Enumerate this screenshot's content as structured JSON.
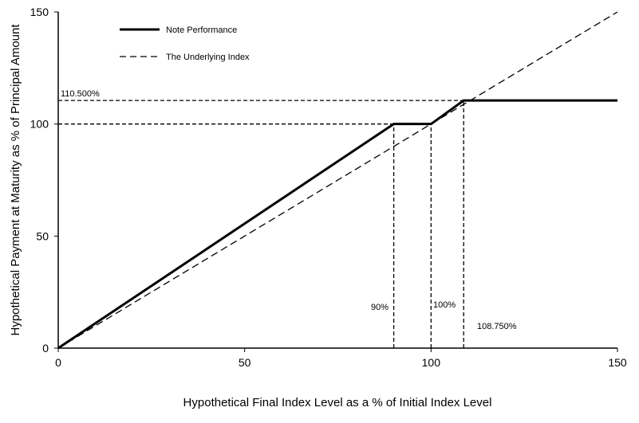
{
  "chart_data": {
    "type": "line",
    "title": "",
    "xlabel": "Hypothetical Final Index Level as a % of Initial Index Level",
    "ylabel": "Hypothetical Payment at Maturity as % of Principal Amount",
    "xlim": [
      0,
      150
    ],
    "ylim": [
      0,
      150
    ],
    "x_ticks": [
      "0",
      "50",
      "100",
      "150"
    ],
    "y_ticks": [
      "0",
      "50",
      "100",
      "150"
    ],
    "grid": false,
    "legend_position": "top-left",
    "series": [
      {
        "name": "Note Performance",
        "style": "solid",
        "x": [
          0,
          90,
          100,
          108.75,
          150
        ],
        "y": [
          0,
          100,
          100,
          110.5,
          110.5
        ]
      },
      {
        "name": "The Underlying Index",
        "style": "dashed",
        "x": [
          0,
          150
        ],
        "y": [
          0,
          150
        ]
      }
    ],
    "annotations": {
      "level_110": {
        "text": "110.500%",
        "x": 0,
        "y": 110.5
      },
      "x90": {
        "text": "90%",
        "x": 90,
        "y": 0
      },
      "x100": {
        "text": "100%",
        "x": 100,
        "y": 0
      },
      "x108": {
        "text": "108.750%",
        "x": 108.75,
        "y": 0
      }
    },
    "reference_lines": {
      "horizontal": [
        {
          "y": 110.5,
          "x_from": 0,
          "x_to": 108.75
        },
        {
          "y": 100,
          "x_from": 0,
          "x_to": 90
        }
      ],
      "vertical": [
        {
          "x": 90,
          "y_from": 0,
          "y_to": 100
        },
        {
          "x": 100,
          "y_from": 0,
          "y_to": 100
        },
        {
          "x": 108.75,
          "y_from": 0,
          "y_to": 110.5
        }
      ]
    }
  }
}
